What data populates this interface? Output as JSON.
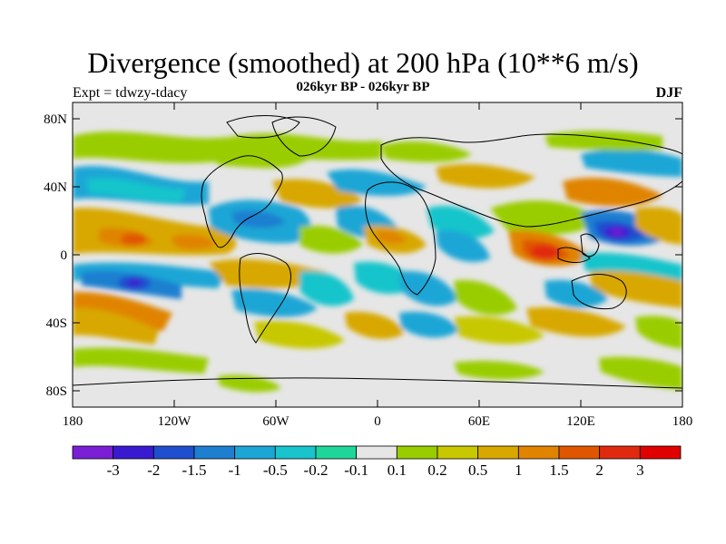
{
  "title": "Divergence (smoothed) at 200 hPa (10**6 m/s)",
  "experiment": "Expt = tdwzy-tdacy",
  "subtitle": "026kyr BP - 026kyr BP",
  "season": "DJF",
  "map": {
    "background_color": "#e6e6e6",
    "x_ticks": [
      "180",
      "120W",
      "60W",
      "0",
      "60E",
      "120E",
      "180"
    ],
    "y_ticks": [
      "80N",
      "40N",
      "0",
      "40S",
      "80S"
    ]
  },
  "colorbar": {
    "labels": [
      "-3",
      "-2",
      "-1.5",
      "-1",
      "-0.5",
      "-0.2",
      "-0.1",
      "0.1",
      "0.2",
      "0.5",
      "1",
      "1.5",
      "2",
      "3"
    ],
    "colors": [
      "#7a1fd6",
      "#3a1ad0",
      "#1f4fcf",
      "#1e7fd0",
      "#1ba6d6",
      "#19c4cc",
      "#1fd69a",
      "#e6e6e6",
      "#9acd00",
      "#c8c800",
      "#d8a800",
      "#e08400",
      "#e05600",
      "#e02a10",
      "#e00000"
    ]
  }
}
